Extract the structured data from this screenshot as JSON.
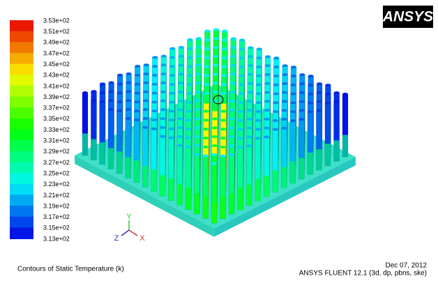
{
  "colorbar": {
    "labels": [
      "3.53e+02",
      "3.51e+02",
      "3.49e+02",
      "3.47e+02",
      "3.45e+02",
      "3.43e+02",
      "3.41e+02",
      "3.39e+02",
      "3.37e+02",
      "3.35e+02",
      "3.33e+02",
      "3.31e+02",
      "3.29e+02",
      "3.27e+02",
      "3.25e+02",
      "3.23e+02",
      "3.21e+02",
      "3.19e+02",
      "3.17e+02",
      "3.15e+02",
      "3.13e+02"
    ]
  },
  "logo": "ANSYS",
  "axes": {
    "y": "Y",
    "z": "Z",
    "x": "X"
  },
  "footer": {
    "caption": "Contours of Static Temperature (k)",
    "date": "Dec 07, 2012",
    "solver": "ANSYS FLUENT 12.1 (3d, dp, pbns, ske)"
  }
}
